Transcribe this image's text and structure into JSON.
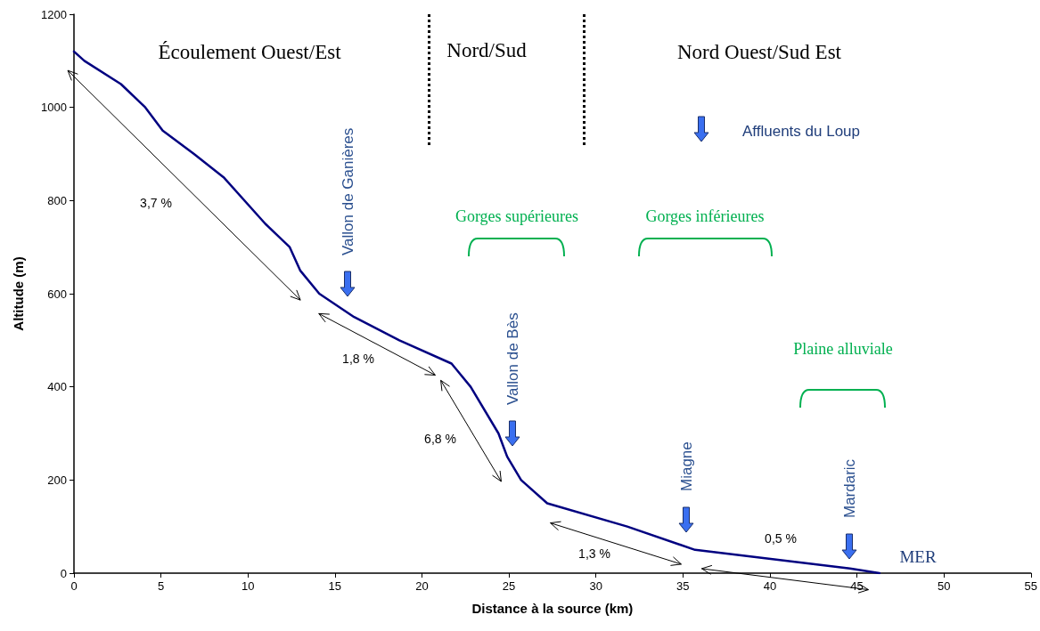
{
  "chart_data": {
    "type": "line",
    "xlabel": "Distance à la source (km)",
    "ylabel": "Altitude (m)",
    "x": [
      0,
      0.6,
      2.7,
      4.1,
      5.1,
      6.9,
      8.6,
      11.0,
      12.4,
      13.0,
      14.1,
      16.1,
      18.7,
      21.7,
      22.8,
      24.4,
      24.9,
      25.7,
      27.2,
      31.8,
      35.7,
      44.6,
      46.3
    ],
    "series": [
      {
        "color": "#000080",
        "values": [
          1120,
          1100,
          1050,
          1000,
          950,
          900,
          850,
          750,
          700,
          650,
          600,
          550,
          500,
          450,
          400,
          300,
          250,
          200,
          150,
          100,
          50,
          10,
          0
        ]
      }
    ],
    "xlim": [
      0,
      55
    ],
    "xticks": [
      0,
      5,
      10,
      15,
      20,
      25,
      30,
      35,
      40,
      45,
      50,
      55
    ],
    "ylim": [
      0,
      1200
    ],
    "yticks": [
      0,
      200,
      400,
      600,
      800,
      1000,
      1200
    ],
    "grid": false,
    "marker": "none",
    "line_style": "solid",
    "ref_lines": [
      {
        "axis": "x",
        "value": 20.4,
        "color": "#000000",
        "line_style": "dotted"
      },
      {
        "axis": "x",
        "value": 29.3,
        "color": "#000000",
        "line_style": "dotted"
      }
    ],
    "annotations": [
      "Écoulement Ouest/Est",
      "Nord/Sud",
      "Nord Ouest/Sud Est",
      "Affluents du Loup",
      "Vallon de Ganières",
      "Vallon de Bès",
      "Miagne",
      "Mardaric",
      "3,7 %",
      "1,8 %",
      "6,8 %",
      "1,3 %",
      "0,5 %",
      "MER",
      "Gorges supérieures",
      "Gorges inférieures",
      "Plaine alluviale"
    ]
  }
}
